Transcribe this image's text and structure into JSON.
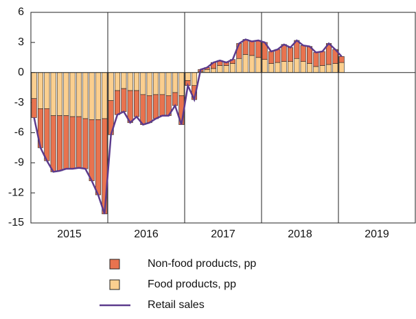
{
  "chart_data": {
    "type": "stacked-bar-line",
    "categories": [
      null,
      null,
      null,
      null,
      null,
      null,
      null,
      null,
      null,
      null,
      null,
      null,
      null,
      null,
      null,
      null,
      null,
      null,
      null,
      null,
      null,
      null,
      null,
      null,
      null,
      null,
      null,
      null,
      null,
      null,
      null,
      null,
      null,
      null,
      null,
      null,
      null,
      null,
      null,
      null,
      null,
      null,
      null,
      null,
      null,
      null,
      null,
      null,
      null
    ],
    "year_labels": [
      "2015",
      "2016",
      "2017",
      "2018",
      "2019"
    ],
    "ylim": [
      -15,
      6
    ],
    "yticks": [
      -15,
      -12,
      -9,
      -6,
      -3,
      0,
      3,
      6
    ],
    "series": [
      {
        "name": "Non-food products, pp",
        "kind": "bar",
        "color": "#e8734f",
        "values": [
          -1.9,
          -3.9,
          -5.2,
          -5.6,
          -5.5,
          -5.3,
          -5.2,
          -5.1,
          -5.0,
          -6.1,
          -7.5,
          -9.5,
          -3.4,
          -2.4,
          -2.3,
          -3.2,
          -2.6,
          -3.0,
          -2.7,
          -2.4,
          -2.1,
          -2.0,
          -1.3,
          -2.9,
          -0.5,
          -1.4,
          0.2,
          0.2,
          0.6,
          0.5,
          0.3,
          0.4,
          1.5,
          1.5,
          1.4,
          1.7,
          1.7,
          1.2,
          1.3,
          1.7,
          1.4,
          1.8,
          1.6,
          1.7,
          1.4,
          1.4,
          2.1,
          1.4,
          0.6
        ]
      },
      {
        "name": "Food products, pp",
        "kind": "bar",
        "color": "#fbcf8f",
        "values": [
          -2.6,
          -3.6,
          -3.6,
          -4.3,
          -4.3,
          -4.3,
          -4.4,
          -4.4,
          -4.6,
          -4.7,
          -4.7,
          -4.6,
          -2.8,
          -1.8,
          -1.6,
          -1.8,
          -1.8,
          -2.2,
          -2.3,
          -2.2,
          -2.2,
          -2.3,
          -2.0,
          -2.3,
          -0.8,
          -1.3,
          0.1,
          0.3,
          0.4,
          0.7,
          0.7,
          0.9,
          1.4,
          1.8,
          1.7,
          1.5,
          1.3,
          0.9,
          1.0,
          1.1,
          1.1,
          1.4,
          1.1,
          0.9,
          0.6,
          0.7,
          0.8,
          0.9,
          1.0
        ]
      },
      {
        "name": "Retail sales",
        "kind": "line",
        "color": "#5b3a8c",
        "values": [
          -4.5,
          -7.5,
          -8.8,
          -9.9,
          -9.8,
          -9.6,
          -9.6,
          -9.5,
          -9.6,
          -10.8,
          -12.2,
          -14.1,
          -6.2,
          -4.2,
          -3.9,
          -5.0,
          -4.4,
          -5.2,
          -5.0,
          -4.6,
          -4.3,
          -4.3,
          -3.3,
          -5.2,
          -1.3,
          -2.7,
          0.3,
          0.5,
          1.0,
          1.2,
          1.0,
          1.3,
          2.9,
          3.3,
          3.1,
          3.2,
          3.0,
          2.1,
          2.3,
          2.8,
          2.5,
          3.2,
          2.7,
          2.6,
          2.0,
          2.1,
          2.9,
          2.3,
          1.6
        ]
      }
    ]
  }
}
